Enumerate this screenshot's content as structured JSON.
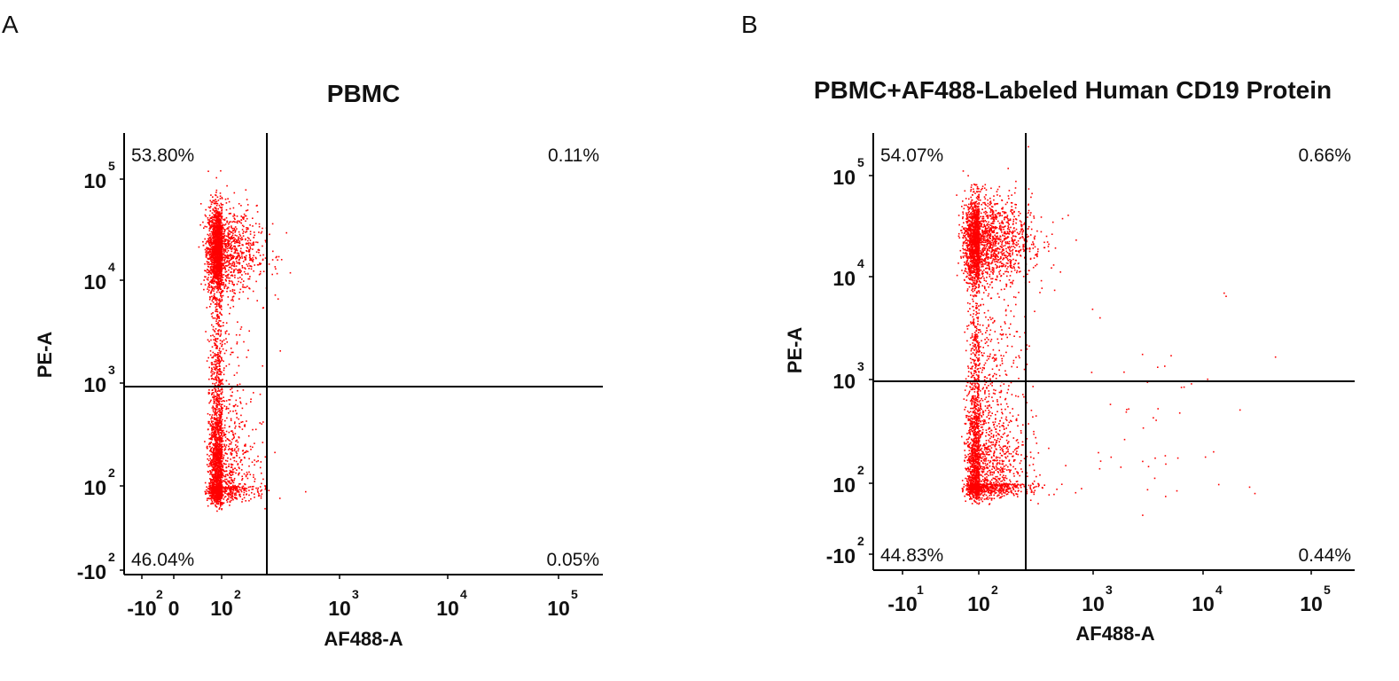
{
  "panels": [
    {
      "letter": "A",
      "title": "PBMC"
    },
    {
      "letter": "B",
      "title": "PBMC+AF488-Labeled Human CD19 Protein"
    }
  ],
  "chart_data": [
    {
      "type": "scatter",
      "title": "PBMC",
      "xlabel": "AF488-A",
      "ylabel": "PE-A",
      "point_color": "#ff0000",
      "x_ticks": [
        {
          "base": "-10",
          "exp": "2"
        },
        {
          "base": "0",
          "exp": ""
        },
        {
          "base": "10",
          "exp": "2"
        },
        {
          "base": "10",
          "exp": "3"
        },
        {
          "base": "10",
          "exp": "4"
        },
        {
          "base": "10",
          "exp": "5"
        }
      ],
      "y_ticks": [
        {
          "base": "-10",
          "exp": "2"
        },
        {
          "base": "10",
          "exp": "2"
        },
        {
          "base": "10",
          "exp": "3"
        },
        {
          "base": "10",
          "exp": "4"
        },
        {
          "base": "10",
          "exp": "5"
        }
      ],
      "quadrants": {
        "upper_left": "53.80%",
        "upper_right": "0.11%",
        "lower_left": "46.04%",
        "lower_right": "0.05%"
      },
      "populations": [
        {
          "x_log": 1.85,
          "y_log": 4.3,
          "spread_x": 0.22,
          "spread_y": 0.22,
          "count": 2300
        },
        {
          "x_log": 1.85,
          "y_log": 2.1,
          "spread_x": 0.2,
          "spread_y": 0.38,
          "count": 2100
        },
        {
          "x_log": 1.85,
          "y_log": 3.2,
          "spread_x": 0.18,
          "spread_y": 0.35,
          "count": 380
        }
      ]
    },
    {
      "type": "scatter",
      "title": "PBMC+AF488-Labeled Human CD19 Protein",
      "xlabel": "AF488-A",
      "ylabel": "PE-A",
      "point_color": "#ff0000",
      "x_ticks": [
        {
          "base": "-10",
          "exp": "1"
        },
        {
          "base": "10",
          "exp": "2"
        },
        {
          "base": "10",
          "exp": "3"
        },
        {
          "base": "10",
          "exp": "4"
        },
        {
          "base": "10",
          "exp": "5"
        }
      ],
      "y_ticks": [
        {
          "base": "-10",
          "exp": "2"
        },
        {
          "base": "10",
          "exp": "2"
        },
        {
          "base": "10",
          "exp": "3"
        },
        {
          "base": "10",
          "exp": "4"
        },
        {
          "base": "10",
          "exp": "5"
        }
      ],
      "quadrants": {
        "upper_left": "54.07%",
        "upper_right": "0.66%",
        "lower_left": "44.83%",
        "lower_right": "0.44%"
      },
      "populations": [
        {
          "x_log": 1.95,
          "y_log": 4.35,
          "spread_x": 0.25,
          "spread_y": 0.22,
          "count": 2300
        },
        {
          "x_log": 1.95,
          "y_log": 2.1,
          "spread_x": 0.22,
          "spread_y": 0.4,
          "count": 2100
        },
        {
          "x_log": 1.95,
          "y_log": 3.2,
          "spread_x": 0.22,
          "spread_y": 0.35,
          "count": 450
        },
        {
          "x_log": 3.4,
          "y_log": 2.6,
          "spread_x": 0.6,
          "spread_y": 0.7,
          "count": 60
        }
      ]
    }
  ]
}
